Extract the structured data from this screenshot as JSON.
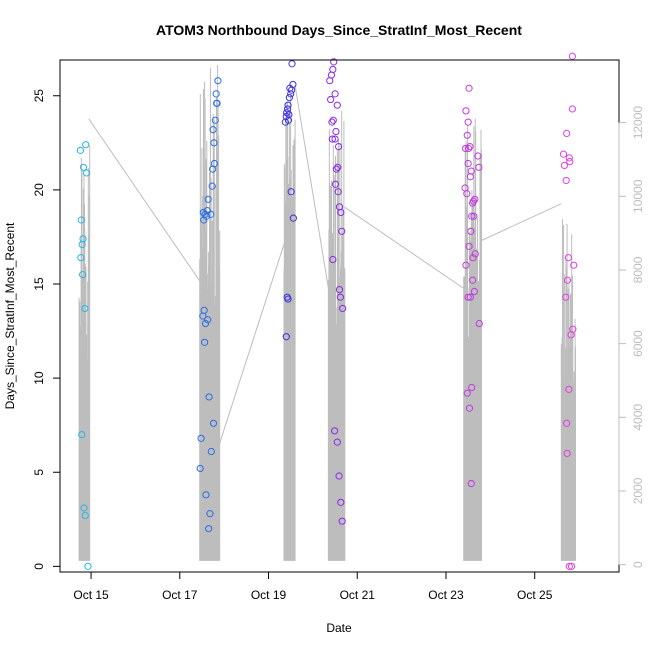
{
  "chart_data": {
    "type": "scatter",
    "title": "ATOM3 Northbound Days_Since_StratInf_Most_Recent",
    "xlabel": "Date",
    "ylabel": "Days_Since_StratInf_Most_Recent",
    "x_tick_labels": [
      "Oct 15",
      "Oct 17",
      "Oct 19",
      "Oct 21",
      "Oct 23",
      "Oct 25"
    ],
    "x_tick_values": [
      15,
      17,
      19,
      21,
      23,
      25
    ],
    "xlim": [
      14.3,
      26.9
    ],
    "ylim": [
      -0.3,
      26.9
    ],
    "y_ticks": [
      0,
      5,
      10,
      15,
      20,
      25
    ],
    "y_tick_labels": [
      "0",
      "5",
      "10",
      "15",
      "20",
      "25"
    ],
    "y2_ticks": [
      0,
      2000,
      4000,
      6000,
      8000,
      10000,
      12000
    ],
    "y2_tick_labels": [
      "0",
      "2000",
      "4000",
      "6000",
      "8000",
      "10000",
      "12000"
    ],
    "y2lim": [
      -200,
      13700
    ],
    "grid": false,
    "colors": {
      "flight1": "#29b6e6",
      "flight2": "#2a6fe6",
      "flight3": "#3a2fe0",
      "flight4": "#8a2be6",
      "flight5": "#c33ae0",
      "flight6": "#e23ee6",
      "altitude": "#bdbdbd"
    },
    "scatter_groups": [
      {
        "color_key": "flight1",
        "points": [
          {
            "x": 14.76,
            "y": 22.1
          },
          {
            "x": 14.78,
            "y": 18.4
          },
          {
            "x": 14.8,
            "y": 17.1
          },
          {
            "x": 14.77,
            "y": 16.4
          },
          {
            "x": 14.82,
            "y": 17.4
          },
          {
            "x": 14.83,
            "y": 21.2
          },
          {
            "x": 14.81,
            "y": 15.5
          },
          {
            "x": 14.88,
            "y": 22.4
          },
          {
            "x": 14.9,
            "y": 20.9
          },
          {
            "x": 14.86,
            "y": 13.7
          },
          {
            "x": 14.79,
            "y": 7.0
          },
          {
            "x": 14.84,
            "y": 3.1
          },
          {
            "x": 14.87,
            "y": 2.7
          },
          {
            "x": 14.93,
            "y": 0.0
          }
        ]
      },
      {
        "color_key": "flight2",
        "points": [
          {
            "x": 17.48,
            "y": 6.8
          },
          {
            "x": 17.46,
            "y": 5.2
          },
          {
            "x": 17.52,
            "y": 13.3
          },
          {
            "x": 17.55,
            "y": 13.6
          },
          {
            "x": 17.54,
            "y": 18.4
          },
          {
            "x": 17.57,
            "y": 18.7
          },
          {
            "x": 17.53,
            "y": 18.8
          },
          {
            "x": 17.6,
            "y": 18.6
          },
          {
            "x": 17.62,
            "y": 18.9
          },
          {
            "x": 17.58,
            "y": 12.9
          },
          {
            "x": 17.63,
            "y": 13.1
          },
          {
            "x": 17.56,
            "y": 11.9
          },
          {
            "x": 17.64,
            "y": 19.5
          },
          {
            "x": 17.59,
            "y": 3.8
          },
          {
            "x": 17.66,
            "y": 9.0
          },
          {
            "x": 17.65,
            "y": 2.0
          },
          {
            "x": 17.68,
            "y": 2.8
          },
          {
            "x": 17.7,
            "y": 18.7
          },
          {
            "x": 17.71,
            "y": 6.1
          },
          {
            "x": 17.73,
            "y": 20.2
          },
          {
            "x": 17.74,
            "y": 21.1
          },
          {
            "x": 17.75,
            "y": 23.2
          },
          {
            "x": 17.77,
            "y": 22.5
          },
          {
            "x": 17.78,
            "y": 21.4
          },
          {
            "x": 17.8,
            "y": 23.7
          },
          {
            "x": 17.82,
            "y": 25.1
          },
          {
            "x": 17.83,
            "y": 24.6
          },
          {
            "x": 17.84,
            "y": 24.6
          },
          {
            "x": 17.86,
            "y": 25.8
          },
          {
            "x": 17.76,
            "y": 7.6
          }
        ]
      },
      {
        "color_key": "flight3",
        "points": [
          {
            "x": 19.4,
            "y": 12.2
          },
          {
            "x": 19.42,
            "y": 14.3
          },
          {
            "x": 19.44,
            "y": 14.2
          },
          {
            "x": 19.38,
            "y": 23.6
          },
          {
            "x": 19.4,
            "y": 23.9
          },
          {
            "x": 19.41,
            "y": 24.1
          },
          {
            "x": 19.43,
            "y": 24.3
          },
          {
            "x": 19.45,
            "y": 23.7
          },
          {
            "x": 19.46,
            "y": 24.0
          },
          {
            "x": 19.47,
            "y": 24.9
          },
          {
            "x": 19.5,
            "y": 25.1
          },
          {
            "x": 19.48,
            "y": 25.4
          },
          {
            "x": 19.52,
            "y": 25.3
          },
          {
            "x": 19.55,
            "y": 25.6
          },
          {
            "x": 19.53,
            "y": 26.7
          },
          {
            "x": 19.51,
            "y": 19.9
          },
          {
            "x": 19.56,
            "y": 18.5
          },
          {
            "x": 19.44,
            "y": 24.5
          }
        ]
      },
      {
        "color_key": "flight4",
        "points": [
          {
            "x": 20.38,
            "y": 25.8
          },
          {
            "x": 20.42,
            "y": 26.1
          },
          {
            "x": 20.45,
            "y": 26.4
          },
          {
            "x": 20.47,
            "y": 26.8
          },
          {
            "x": 20.4,
            "y": 24.8
          },
          {
            "x": 20.5,
            "y": 25.1
          },
          {
            "x": 20.43,
            "y": 23.6
          },
          {
            "x": 20.46,
            "y": 23.7
          },
          {
            "x": 20.55,
            "y": 24.5
          },
          {
            "x": 20.52,
            "y": 23.1
          },
          {
            "x": 20.44,
            "y": 22.7
          },
          {
            "x": 20.5,
            "y": 22.7
          },
          {
            "x": 20.58,
            "y": 22.3
          },
          {
            "x": 20.53,
            "y": 21.1
          },
          {
            "x": 20.56,
            "y": 21.2
          },
          {
            "x": 20.51,
            "y": 20.3
          },
          {
            "x": 20.57,
            "y": 19.9
          },
          {
            "x": 20.6,
            "y": 19.1
          },
          {
            "x": 20.63,
            "y": 18.8
          },
          {
            "x": 20.65,
            "y": 17.8
          },
          {
            "x": 20.45,
            "y": 16.3
          },
          {
            "x": 20.6,
            "y": 14.7
          },
          {
            "x": 20.62,
            "y": 14.3
          },
          {
            "x": 20.67,
            "y": 13.7
          },
          {
            "x": 20.49,
            "y": 7.2
          },
          {
            "x": 20.55,
            "y": 6.6
          },
          {
            "x": 20.59,
            "y": 4.8
          },
          {
            "x": 20.63,
            "y": 3.4
          },
          {
            "x": 20.66,
            "y": 2.4
          }
        ]
      },
      {
        "color_key": "flight5",
        "points": [
          {
            "x": 23.45,
            "y": 24.2
          },
          {
            "x": 23.52,
            "y": 25.4
          },
          {
            "x": 23.5,
            "y": 23.6
          },
          {
            "x": 23.48,
            "y": 22.9
          },
          {
            "x": 23.44,
            "y": 22.2
          },
          {
            "x": 23.51,
            "y": 22.2
          },
          {
            "x": 23.54,
            "y": 22.3
          },
          {
            "x": 23.5,
            "y": 21.4
          },
          {
            "x": 23.57,
            "y": 21.0
          },
          {
            "x": 23.43,
            "y": 20.1
          },
          {
            "x": 23.47,
            "y": 19.8
          },
          {
            "x": 23.55,
            "y": 20.7
          },
          {
            "x": 23.6,
            "y": 19.3
          },
          {
            "x": 23.62,
            "y": 19.4
          },
          {
            "x": 23.65,
            "y": 19.5
          },
          {
            "x": 23.58,
            "y": 18.6
          },
          {
            "x": 23.63,
            "y": 18.6
          },
          {
            "x": 23.56,
            "y": 17.8
          },
          {
            "x": 23.52,
            "y": 17.0
          },
          {
            "x": 23.66,
            "y": 16.6
          },
          {
            "x": 23.61,
            "y": 16.4
          },
          {
            "x": 23.45,
            "y": 16.0
          },
          {
            "x": 23.6,
            "y": 15.2
          },
          {
            "x": 23.64,
            "y": 14.6
          },
          {
            "x": 23.5,
            "y": 14.3
          },
          {
            "x": 23.55,
            "y": 14.3
          },
          {
            "x": 23.48,
            "y": 9.2
          },
          {
            "x": 23.58,
            "y": 9.5
          },
          {
            "x": 23.53,
            "y": 8.4
          },
          {
            "x": 23.57,
            "y": 4.4
          },
          {
            "x": 23.72,
            "y": 21.8
          },
          {
            "x": 23.74,
            "y": 21.2
          },
          {
            "x": 23.75,
            "y": 12.9
          }
        ]
      },
      {
        "color_key": "flight6",
        "points": [
          {
            "x": 25.85,
            "y": 27.1
          },
          {
            "x": 25.85,
            "y": 24.3
          },
          {
            "x": 25.72,
            "y": 23.0
          },
          {
            "x": 25.65,
            "y": 21.9
          },
          {
            "x": 25.78,
            "y": 21.7
          },
          {
            "x": 25.79,
            "y": 21.5
          },
          {
            "x": 25.67,
            "y": 21.3
          },
          {
            "x": 25.71,
            "y": 20.5
          },
          {
            "x": 25.76,
            "y": 16.4
          },
          {
            "x": 25.88,
            "y": 16.0
          },
          {
            "x": 25.74,
            "y": 15.2
          },
          {
            "x": 25.7,
            "y": 14.3
          },
          {
            "x": 25.86,
            "y": 12.6
          },
          {
            "x": 25.82,
            "y": 12.3
          },
          {
            "x": 25.77,
            "y": 9.4
          },
          {
            "x": 25.72,
            "y": 7.6
          },
          {
            "x": 25.73,
            "y": 6.0
          },
          {
            "x": 25.78,
            "y": 0.0
          },
          {
            "x": 25.83,
            "y": 0.0
          }
        ]
      }
    ],
    "altitude_bursts": [
      {
        "x": [
          14.73,
          14.97
        ],
        "y2_min": 100,
        "y2_max": 12000
      },
      {
        "x": [
          17.45,
          17.9
        ],
        "y2_min": 100,
        "y2_max": 13600
      },
      {
        "x": [
          19.35,
          19.6
        ],
        "y2_min": 100,
        "y2_max": 13000
      },
      {
        "x": [
          20.35,
          20.72
        ],
        "y2_min": 100,
        "y2_max": 12400
      },
      {
        "x": [
          23.4,
          23.8
        ],
        "y2_min": 100,
        "y2_max": 12400
      },
      {
        "x": [
          25.6,
          25.92
        ],
        "y2_min": 100,
        "y2_max": 9400
      }
    ],
    "altitude_connectors": [
      {
        "x": [
          14.95,
          17.45
        ],
        "y2": [
          12100,
          7700
        ]
      },
      {
        "x": [
          17.9,
          19.35
        ],
        "y2": [
          3300,
          8700
        ]
      },
      {
        "x": [
          19.6,
          20.35
        ],
        "y2": [
          13000,
          7500
        ]
      },
      {
        "x": [
          20.72,
          23.4
        ],
        "y2": [
          9700,
          7500
        ]
      },
      {
        "x": [
          23.8,
          25.6
        ],
        "y2": [
          8800,
          9800
        ]
      }
    ]
  }
}
